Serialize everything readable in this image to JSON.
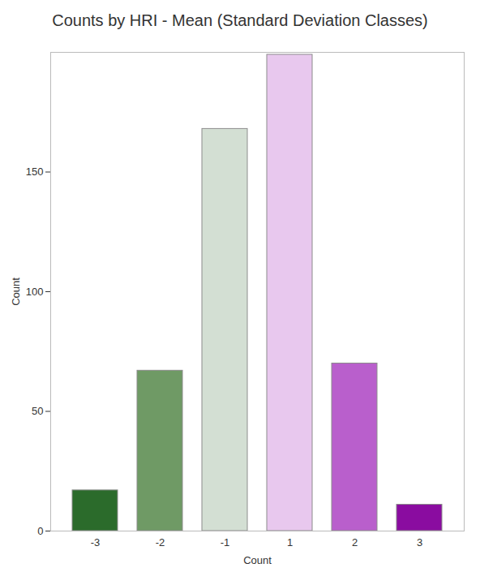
{
  "chart_data": {
    "type": "bar",
    "title": "Counts by HRI - Mean (Standard Deviation Classes)",
    "x_label": "Count",
    "y_label": "Count",
    "categories": [
      "-3",
      "-2",
      "-1",
      "1",
      "2",
      "3"
    ],
    "values": [
      17,
      67,
      168,
      199,
      70,
      11
    ],
    "colors": [
      "#2b6b2b",
      "#6f9a65",
      "#d3dfd3",
      "#e8c8ee",
      "#b95fcc",
      "#8a0ca0"
    ],
    "ylim": [
      0,
      200
    ],
    "yticks": [
      0,
      50,
      100,
      150
    ],
    "grid": false
  }
}
